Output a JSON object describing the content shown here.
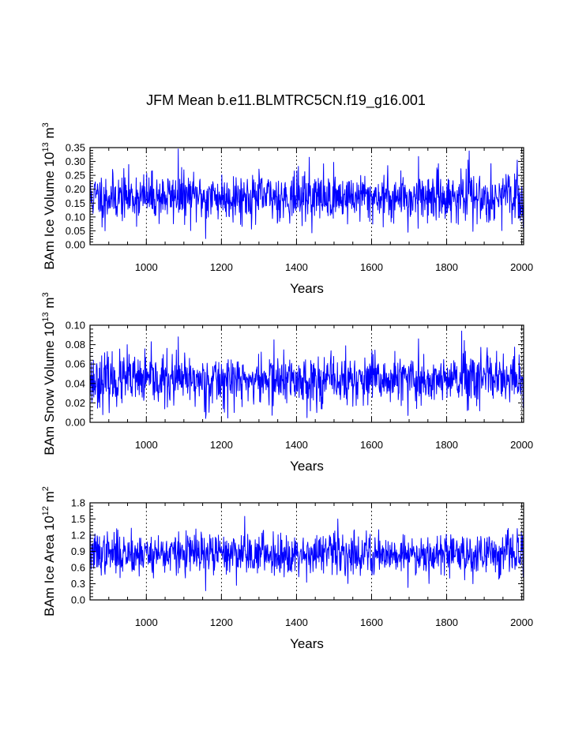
{
  "title": "JFM Mean b.e11.BLMTRC5CN.f19_g16.001",
  "series_color": "#0000ff",
  "chart_data": [
    {
      "type": "line",
      "name": "ice-volume",
      "ylabel": "BAm Ice Volume 10",
      "ylabel_sup": "13",
      "ylabel_unit": "m",
      "ylabel_unit_sup": "3",
      "xlabel": "Years",
      "xlim": [
        850,
        2005
      ],
      "ylim": [
        0.0,
        0.35
      ],
      "yticks": [
        "0.00",
        "0.05",
        "0.10",
        "0.15",
        "0.20",
        "0.25",
        "0.30",
        "0.35"
      ],
      "xticks": [
        "1000",
        "1200",
        "1400",
        "1600",
        "1800",
        "2000"
      ],
      "gridlines_x": [
        1000,
        1200,
        1400,
        1600,
        1800,
        2000
      ],
      "series": [
        {
          "name": "BAm Ice Volume",
          "seed": 11,
          "mean": 0.172,
          "sd": 0.043,
          "extremes": [
            [
              1085,
              0.345
            ],
            [
              1158,
              0.022
            ],
            [
              1860,
              0.338
            ],
            [
              1725,
              0.318
            ],
            [
              1697,
              0.045
            ],
            [
              1870,
              0.048
            ],
            [
              890,
              0.05
            ],
            [
              1434,
              0.315
            ],
            [
              2004,
              0.06
            ]
          ]
        }
      ]
    },
    {
      "type": "line",
      "name": "snow-volume",
      "ylabel": "BAm Snow Volume 10",
      "ylabel_sup": "13",
      "ylabel_unit": "m",
      "ylabel_unit_sup": "3",
      "xlabel": "Years",
      "xlim": [
        850,
        2005
      ],
      "ylim": [
        0.0,
        0.1
      ],
      "yticks": [
        "0.00",
        "0.02",
        "0.04",
        "0.06",
        "0.08",
        "0.10"
      ],
      "xticks": [
        "1000",
        "1200",
        "1400",
        "1600",
        "1800",
        "2000"
      ],
      "gridlines_x": [
        1000,
        1200,
        1400,
        1600,
        1800,
        2000
      ],
      "series": [
        {
          "name": "BAm Snow Volume",
          "seed": 23,
          "mean": 0.043,
          "sd": 0.013,
          "extremes": [
            [
              1085,
              0.088
            ],
            [
              1158,
              0.004
            ],
            [
              1840,
              0.094
            ],
            [
              1725,
              0.086
            ],
            [
              1697,
              0.007
            ],
            [
              1340,
              0.085
            ],
            [
              949,
              0.08
            ],
            [
              2004,
              0.015
            ]
          ]
        }
      ]
    },
    {
      "type": "line",
      "name": "ice-area",
      "ylabel": "BAm Ice Area 10",
      "ylabel_sup": "12",
      "ylabel_unit": "m",
      "ylabel_unit_sup": "2",
      "xlabel": "Years",
      "xlim": [
        850,
        2005
      ],
      "ylim": [
        0.0,
        1.8
      ],
      "yticks": [
        "0.0",
        "0.3",
        "0.6",
        "0.9",
        "1.2",
        "1.5",
        "1.8"
      ],
      "xticks": [
        "1000",
        "1200",
        "1400",
        "1600",
        "1800",
        "2000"
      ],
      "gridlines_x": [
        1000,
        1200,
        1400,
        1600,
        1800,
        2000
      ],
      "series": [
        {
          "name": "BAm Ice Area",
          "seed": 37,
          "mean": 0.86,
          "sd": 0.19,
          "extremes": [
            [
              1262,
              1.55
            ],
            [
              1158,
              0.17
            ],
            [
              1510,
              1.5
            ],
            [
              1697,
              0.23
            ],
            [
              960,
              1.33
            ],
            [
              1870,
              0.3
            ],
            [
              2004,
              0.42
            ]
          ]
        }
      ]
    }
  ]
}
